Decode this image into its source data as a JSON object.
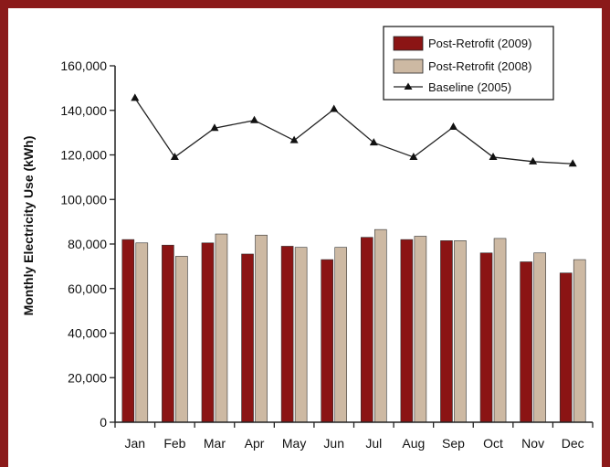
{
  "colors": {
    "frame": "#8b1a1a",
    "post_2009": "#8b1414",
    "post_2008": "#cdb9a3",
    "baseline": "#222222"
  },
  "chart_data": {
    "type": "bar",
    "categories": [
      "Jan",
      "Feb",
      "Mar",
      "Apr",
      "May",
      "Jun",
      "Jul",
      "Aug",
      "Sep",
      "Oct",
      "Nov",
      "Dec"
    ],
    "series": [
      {
        "name": "Post-Retrofit (2009)",
        "kind": "bar",
        "values": [
          82000,
          79500,
          80500,
          75500,
          79000,
          73000,
          83000,
          82000,
          81500,
          76000,
          72000,
          67000
        ]
      },
      {
        "name": "Post-Retrofit (2008)",
        "kind": "bar",
        "values": [
          80500,
          74500,
          84500,
          84000,
          78500,
          78500,
          86500,
          83500,
          81500,
          82500,
          76000,
          73000
        ]
      },
      {
        "name": "Baseline (2005)",
        "kind": "line",
        "marker": "triangle",
        "values": [
          145500,
          119000,
          132000,
          135500,
          126500,
          140500,
          125500,
          119000,
          132500,
          119000,
          117000,
          116000
        ]
      }
    ],
    "ylabel": "Monthly Electricity Use (kWh)",
    "xlabel": "",
    "title": "",
    "ylim": [
      0,
      160000
    ],
    "yticks": [
      "0",
      "20,000",
      "40,000",
      "60,000",
      "80,000",
      "100,000",
      "120,000",
      "140,000",
      "160,000"
    ],
    "grid": false,
    "legend_position": "top-right"
  }
}
